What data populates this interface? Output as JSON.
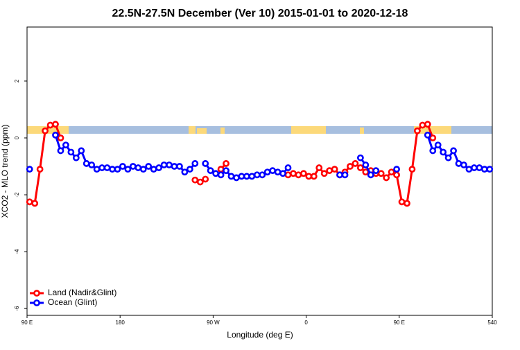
{
  "chart_data": {
    "type": "line",
    "title": "22.5N-27.5N December (Ver 10)   2015-01-01 to 2020-12-18",
    "x_label": "Longitude (deg E)",
    "y_label": "XCO2 - MLO trend (ppm)",
    "x": [
      92.5,
      97.5,
      102.5,
      107.5,
      112.5,
      117.5,
      122.5,
      127.5,
      132.5,
      137.5,
      142.5,
      147.5,
      152.5,
      157.5,
      162.5,
      167.5,
      172.5,
      177.5,
      182.5,
      187.5,
      192.5,
      197.5,
      202.5,
      207.5,
      212.5,
      217.5,
      222.5,
      227.5,
      232.5,
      237.5,
      242.5,
      247.5,
      252.5,
      257.5,
      262.5,
      267.5,
      272.5,
      277.5,
      282.5,
      287.5,
      292.5,
      297.5,
      302.5,
      307.5,
      312.5,
      317.5,
      322.5,
      327.5,
      332.5,
      337.5,
      342.5,
      347.5,
      352.5,
      357.5,
      362.5,
      367.5,
      372.5,
      377.5,
      382.5,
      387.5,
      392.5,
      397.5,
      402.5,
      407.5,
      412.5,
      417.5,
      422.5,
      427.5,
      432.5,
      437.5,
      442.5,
      447.5,
      452.5,
      457.5,
      462.5,
      467.5,
      472.5,
      477.5,
      482.5,
      487.5,
      492.5,
      497.5,
      502.5,
      507.5,
      512.5,
      517.5,
      522.5,
      527.5,
      532.5,
      537.5
    ],
    "series": [
      {
        "name": "Land (Nadir&Glint)",
        "color": "#ff0000",
        "values": [
          -2.25,
          -2.3,
          -1.1,
          0.25,
          0.45,
          0.48,
          0.0,
          null,
          null,
          null,
          null,
          null,
          null,
          null,
          null,
          null,
          null,
          null,
          null,
          null,
          null,
          null,
          null,
          null,
          null,
          null,
          null,
          null,
          null,
          null,
          null,
          null,
          -1.48,
          -1.55,
          -1.45,
          null,
          null,
          -1.1,
          -0.9,
          null,
          null,
          null,
          null,
          null,
          null,
          null,
          null,
          null,
          null,
          null,
          -1.3,
          -1.25,
          -1.3,
          -1.25,
          -1.35,
          -1.35,
          -1.05,
          -1.25,
          -1.15,
          -1.1,
          -1.3,
          -1.2,
          -1.0,
          -0.9,
          -1.05,
          -1.2,
          -1.15,
          -1.25,
          -1.25,
          -1.4,
          -1.2,
          -1.3,
          -2.25,
          -2.3,
          -1.1,
          0.25,
          0.45,
          0.48,
          0.0,
          null,
          null,
          null,
          null,
          null,
          null,
          null,
          null,
          null,
          null,
          null
        ]
      },
      {
        "name": "Ocean (Glint)",
        "color": "#0000ff",
        "values": [
          -1.1,
          null,
          null,
          null,
          null,
          0.1,
          -0.45,
          -0.25,
          -0.5,
          -0.7,
          -0.45,
          -0.9,
          -0.95,
          -1.1,
          -1.05,
          -1.05,
          -1.1,
          -1.1,
          -1.0,
          -1.1,
          -1.0,
          -1.05,
          -1.1,
          -1.0,
          -1.1,
          -1.05,
          -0.95,
          -0.95,
          -1.0,
          -1.0,
          -1.2,
          -1.1,
          -0.9,
          null,
          -0.9,
          -1.15,
          -1.25,
          -1.3,
          -1.15,
          -1.35,
          -1.4,
          -1.35,
          -1.35,
          -1.35,
          -1.3,
          -1.3,
          -1.2,
          -1.15,
          -1.2,
          -1.25,
          -1.05,
          null,
          null,
          null,
          null,
          null,
          null,
          null,
          null,
          null,
          -1.3,
          -1.3,
          null,
          null,
          -0.7,
          -0.95,
          -1.3,
          -1.15,
          null,
          null,
          null,
          -1.1,
          null,
          null,
          null,
          null,
          null,
          0.1,
          -0.45,
          -0.25,
          -0.5,
          -0.7,
          -0.45,
          -0.9,
          -0.95,
          -1.1,
          -1.05,
          -1.05,
          -1.1,
          -1.1
        ]
      }
    ],
    "xlim": [
      90,
      540
    ],
    "xticks": [
      {
        "value": 90,
        "label": "90 E"
      },
      180,
      {
        "value": 270,
        "label": "90 W"
      },
      {
        "value": 360,
        "label": "0"
      },
      {
        "value": 450,
        "label": "90 E"
      },
      540
    ],
    "ylim": [
      -6.24,
      3.9
    ],
    "yticks": [
      -6,
      -4,
      -2,
      0,
      2
    ],
    "legend": "bottom-left"
  }
}
